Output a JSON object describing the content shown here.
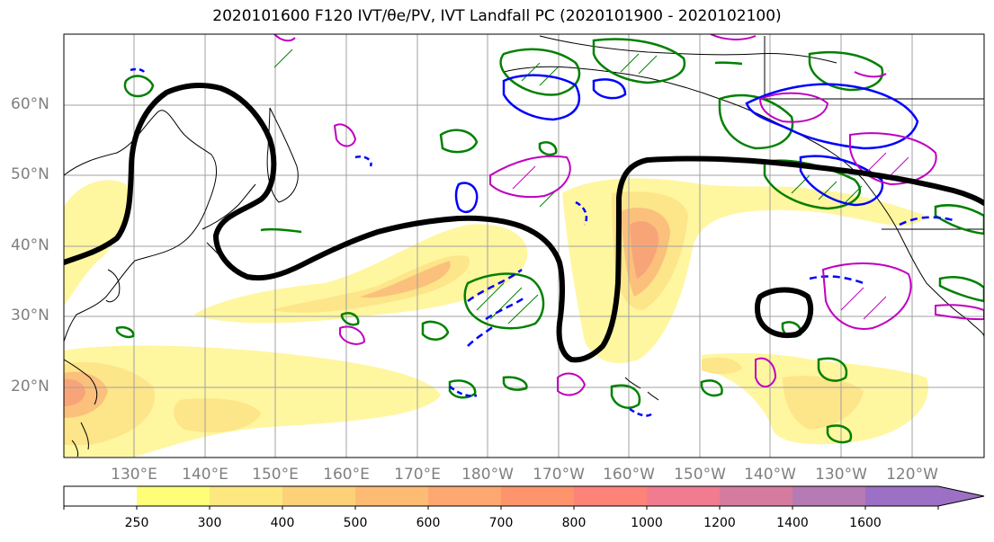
{
  "title": "2020101600 F120 IVT/θe/PV, IVT Landfall PC (2020101900 - 2020102100)",
  "lat_labels": [
    "60°N",
    "50°N",
    "40°N",
    "30°N",
    "20°N"
  ],
  "lon_labels": [
    "130°E",
    "140°E",
    "150°E",
    "160°E",
    "170°E",
    "180°W",
    "170°W",
    "160°W",
    "150°W",
    "140°W",
    "130°W",
    "120°W"
  ],
  "colorbar": {
    "ticks": [
      "250",
      "300",
      "400",
      "500",
      "600",
      "700",
      "800",
      "1000",
      "1200",
      "1400",
      "1600"
    ],
    "colors": [
      "#ffffff",
      "#fefe78",
      "#fde77f",
      "#fdd178",
      "#fdbb74",
      "#fda870",
      "#fd946b",
      "#fd8278",
      "#f17c8f",
      "#d67ba0",
      "#b67ab5",
      "#9b70c5"
    ]
  },
  "colors": {
    "ivt_light": "#fff6a0",
    "ivt_mid": "#fde58a",
    "ivt_high": "#fbc07c",
    "ivt_peak": "#f7a578",
    "landfall_contour": "#000000",
    "green_contour": "#008000",
    "blue_contour": "#0000ff",
    "magenta_contour": "#c000c0",
    "grid": "#a0a0a0"
  }
}
